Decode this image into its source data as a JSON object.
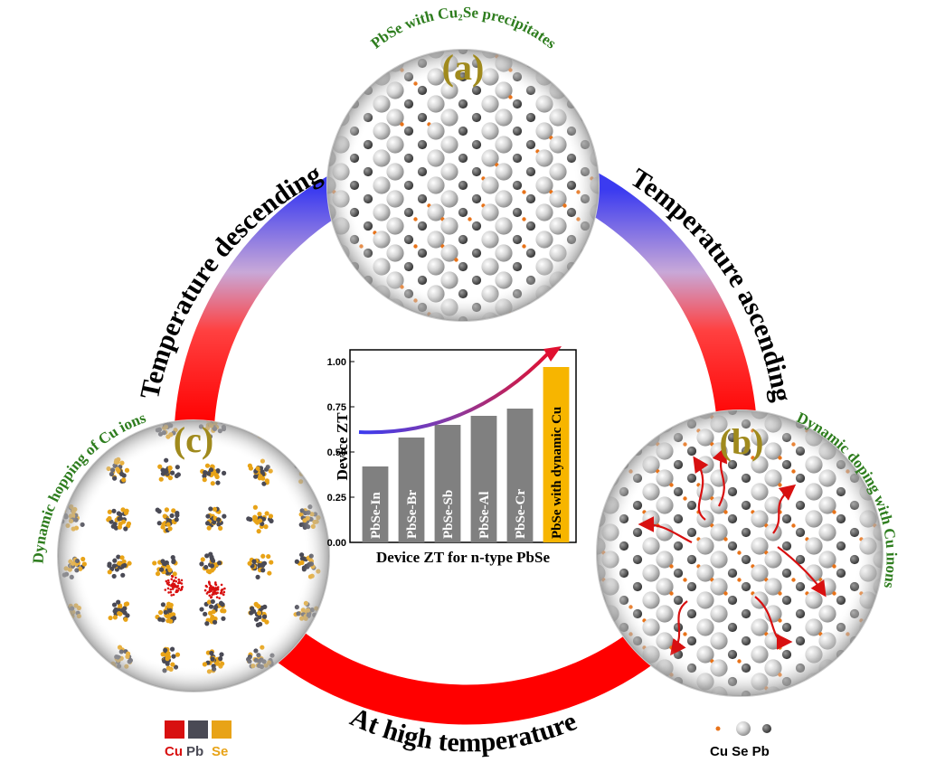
{
  "arc_labels": {
    "left": "Temperature descending",
    "right": "Temperature ascending",
    "bottom": "At high temperature"
  },
  "panels": {
    "a": {
      "letter": "(a)",
      "caption": "PbSe with Cu₂Se precipitates"
    },
    "b": {
      "letter": "(b)",
      "caption": "Dynamic doping with Cu inons"
    },
    "c": {
      "letter": "(c)",
      "caption": "Dynamic hopping of Cu ions"
    }
  },
  "legends": {
    "c": {
      "cu": "Cu",
      "pb": "Pb",
      "se": "Se"
    },
    "b": {
      "text": "Cu Se Pb"
    }
  },
  "colors": {
    "cu_orange": "#e8731a",
    "cu_red": "#d81010",
    "pb_gray": "#4a4a55",
    "se_yellow": "#e8a317",
    "bar_gray": "#808080",
    "highlight_bar": "#f7b500",
    "arc_red": "#ff0000",
    "arc_blue": "#3b3bf0",
    "label_green": "#2e7d1e",
    "letter_olive": "#a08a1d"
  },
  "chart_data": {
    "type": "bar",
    "categories": [
      "PbSe-In",
      "PbSe-Br",
      "PbSe-Sb",
      "PbSe-Al",
      "PbSe-Cr",
      "PbSe with dynamic Cu"
    ],
    "values": [
      0.42,
      0.58,
      0.65,
      0.7,
      0.74,
      0.97
    ],
    "highlight_index": 5,
    "ylabel": "Device ZT",
    "xlabel": "Device ZT for n-type PbSe",
    "ylim": [
      0.0,
      1.0
    ],
    "yticks": [
      "0.00",
      "0.25",
      "0.50",
      "0.75",
      "1.00"
    ],
    "trend_arrow": true,
    "grid": false
  }
}
